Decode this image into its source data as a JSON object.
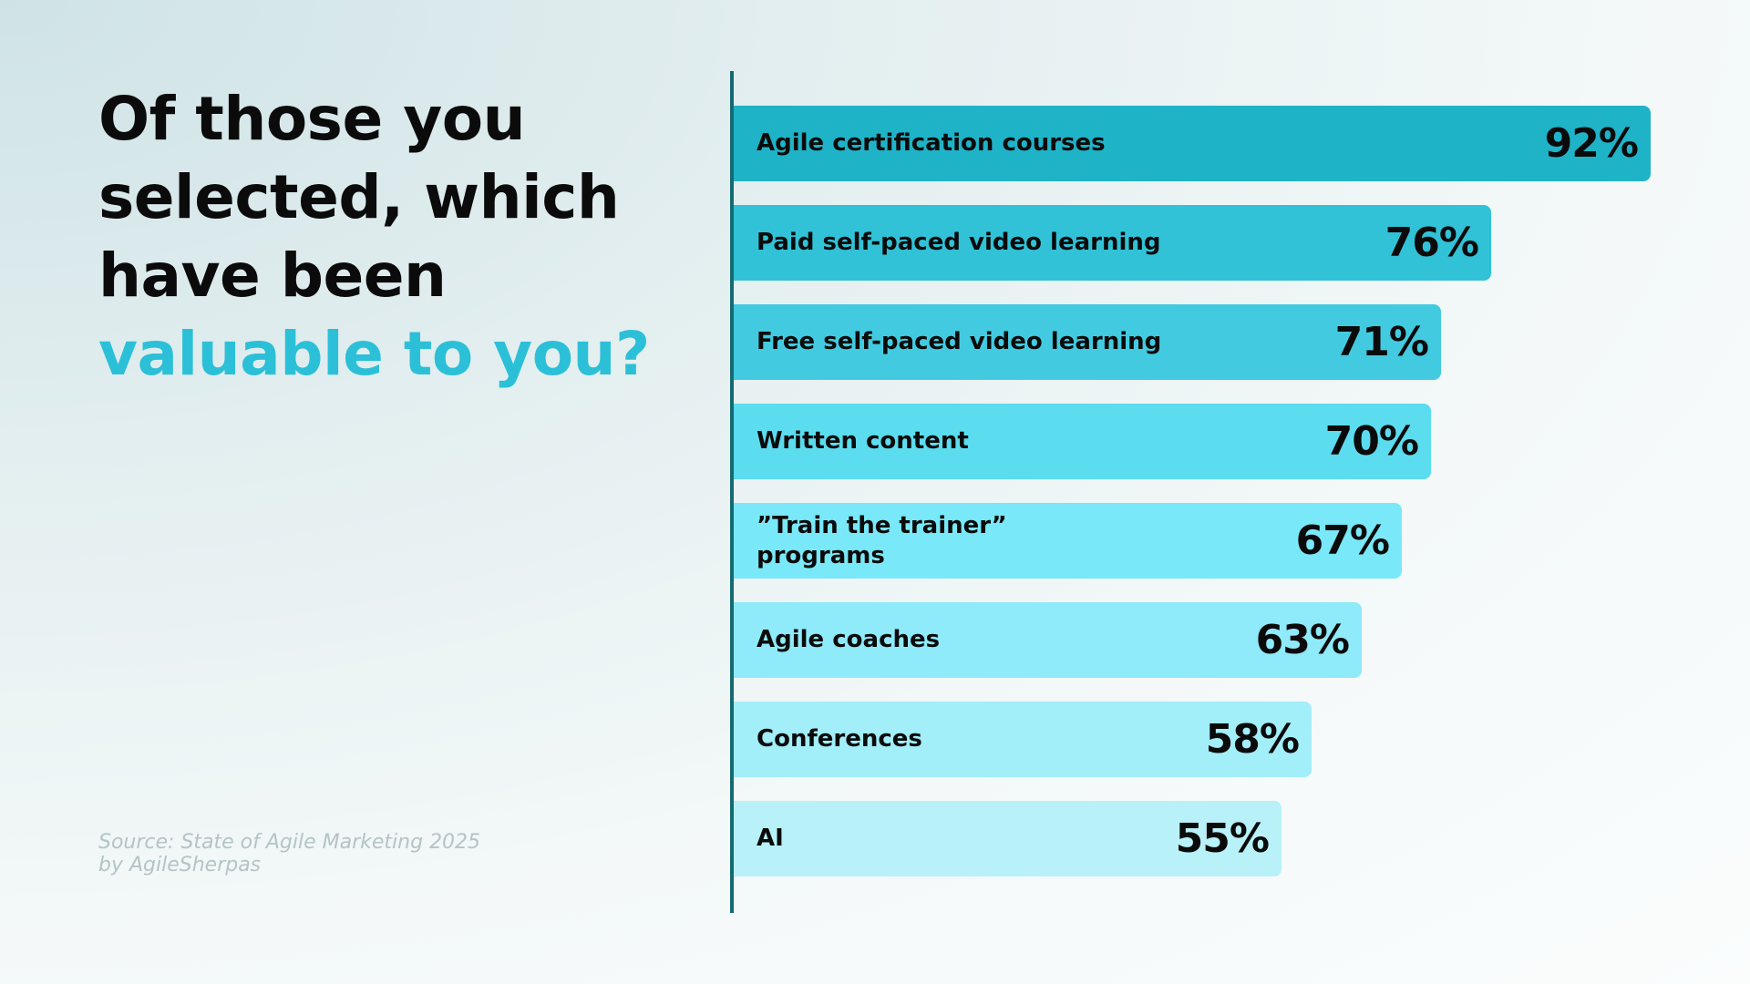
{
  "title": {
    "lines": [
      "Of those you",
      "selected, which",
      "have been"
    ],
    "accent_line": "valuable to you?"
  },
  "source": {
    "line1": "Source: State of Agile Marketing 2025",
    "line2": "by AgileSherpas"
  },
  "colors": {
    "accent": "#2cc0d8",
    "axis": "#156a72",
    "bar_colors": [
      "#1fb3c8",
      "#31c2d7",
      "#42cbe0",
      "#5bdcef",
      "#79e8f8",
      "#8feafa",
      "#a2eef9",
      "#b8f1f8"
    ]
  },
  "chart_data": {
    "type": "bar",
    "orientation": "horizontal",
    "categories": [
      "Agile certification courses",
      "Paid self-paced video learning",
      "Free self-paced video learning",
      "Written content",
      "”Train the trainer”\nprograms",
      "Agile coaches",
      "Conferences",
      "AI"
    ],
    "values": [
      92,
      76,
      71,
      70,
      67,
      63,
      58,
      55
    ],
    "value_labels": [
      "92%",
      "76%",
      "71%",
      "70%",
      "67%",
      "63%",
      "58%",
      "55%"
    ],
    "xlim": [
      0,
      100
    ],
    "grid": false,
    "legend": "none"
  }
}
